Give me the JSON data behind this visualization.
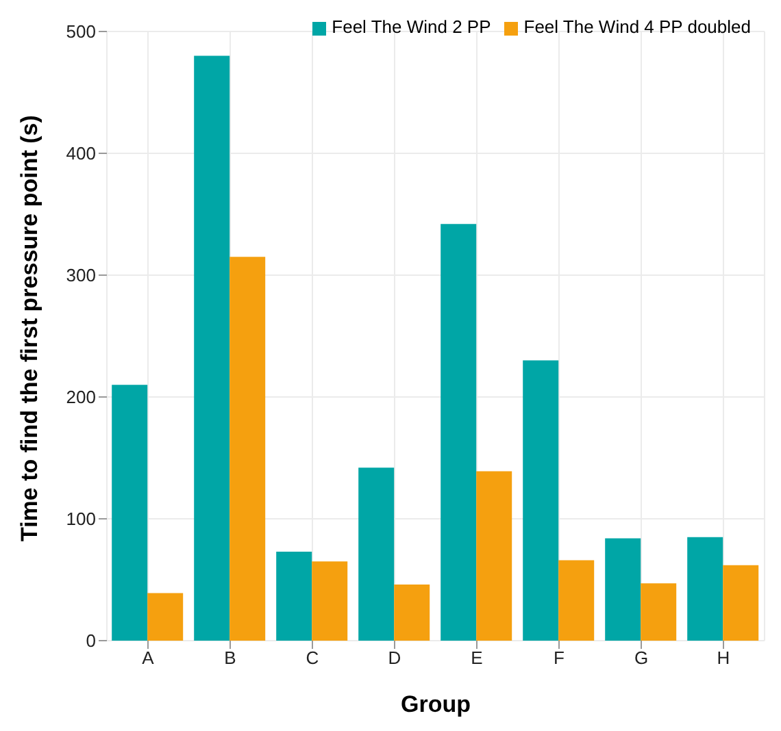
{
  "chart_data": {
    "type": "bar",
    "xlabel": "Group",
    "ylabel": "Time to find the first pressure point (s)",
    "categories": [
      "A",
      "B",
      "C",
      "D",
      "E",
      "F",
      "G",
      "H"
    ],
    "series": [
      {
        "name": "Feel The Wind 2 PP",
        "color": "#00a6a6",
        "values": [
          210,
          480,
          73,
          142,
          342,
          230,
          84,
          85
        ]
      },
      {
        "name": "Feel The Wind 4 PP doubled",
        "color": "#f5a00f",
        "values": [
          39,
          315,
          65,
          46,
          139,
          66,
          47,
          62
        ]
      }
    ],
    "ylim": [
      0,
      500
    ],
    "yticks": [
      0,
      100,
      200,
      300,
      400,
      500
    ],
    "grid": true,
    "legend": "top right"
  }
}
